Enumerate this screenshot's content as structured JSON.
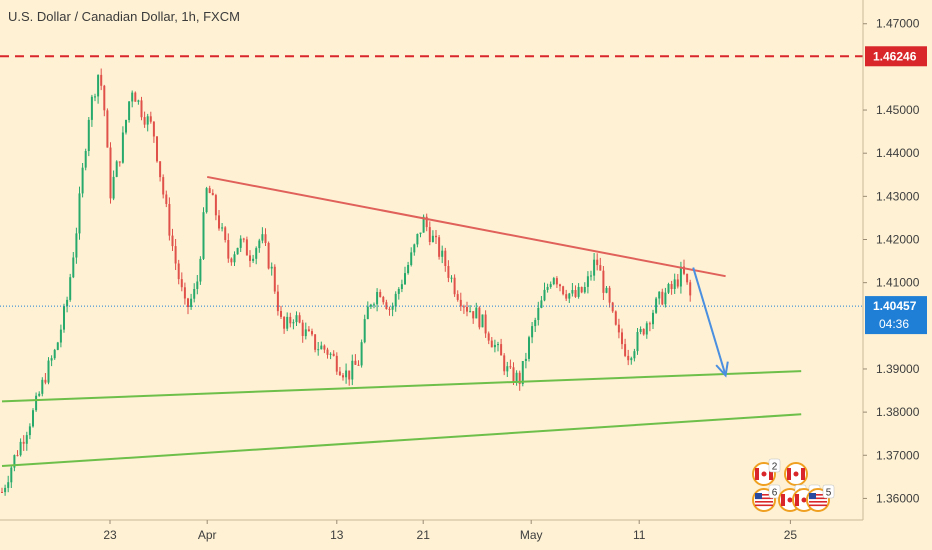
{
  "header": {
    "title": "U.S. Dollar / Canadian Dollar, 1h, FXCM"
  },
  "colors": {
    "background": "#fef1d4",
    "up_candle": "#26a96b",
    "down_candle": "#e0514a",
    "resistance_line": "#e0605a",
    "support_lines": "#6dbf4a",
    "arrow": "#4a8fe0",
    "price_tag": "#1f7fd6",
    "level_tag": "#d8262a"
  },
  "chart_data": {
    "type": "candlestick",
    "title": "U.S. Dollar / Canadian Dollar, 1h, FXCM",
    "x_ticks": [
      "23",
      "Apr",
      "13",
      "21",
      "May",
      "11",
      "25"
    ],
    "y_ticks": [
      "1.47000",
      "1.45000",
      "1.44000",
      "1.43000",
      "1.42000",
      "1.41000",
      "1.39000",
      "1.38000",
      "1.37000",
      "1.36000"
    ],
    "ylim": [
      1.355,
      1.4755
    ],
    "price_series": [
      [
        "Mar 13",
        1.3615
      ],
      [
        "Mar 14",
        1.3685
      ],
      [
        "Mar 15",
        1.3745
      ],
      [
        "Mar 16",
        1.3805
      ],
      [
        "Mar 17",
        1.3885
      ],
      [
        "Mar 18",
        1.3945
      ],
      [
        "Mar 19",
        1.4055
      ],
      [
        "Mar 20",
        1.4245
      ],
      [
        "Mar 21",
        1.4485
      ],
      [
        "Mar 22",
        1.4595
      ],
      [
        "Mar 22b",
        1.4495
      ],
      [
        "Mar 23",
        1.4305
      ],
      [
        "Mar 24",
        1.4405
      ],
      [
        "Mar 25",
        1.4555
      ],
      [
        "Mar 26",
        1.4495
      ],
      [
        "Mar 27",
        1.4455
      ],
      [
        "Mar 28",
        1.4295
      ],
      [
        "Mar 29",
        1.4155
      ],
      [
        "Mar 30",
        1.4035
      ],
      [
        "Mar 31",
        1.4085
      ],
      [
        "Apr 1",
        1.4325
      ],
      [
        "Apr 2",
        1.4245
      ],
      [
        "Apr 3",
        1.4155
      ],
      [
        "Apr 4",
        1.4195
      ],
      [
        "Apr 5",
        1.4165
      ],
      [
        "Apr 6",
        1.4205
      ],
      [
        "Apr 7",
        1.4125
      ],
      [
        "Apr 8",
        1.3985
      ],
      [
        "Apr 9",
        1.4025
      ],
      [
        "Apr 10",
        1.3985
      ],
      [
        "Apr 11",
        1.3955
      ],
      [
        "Apr 12",
        1.3945
      ],
      [
        "Apr 13",
        1.3915
      ],
      [
        "Apr 14",
        1.3885
      ],
      [
        "Apr 15",
        1.3915
      ],
      [
        "Apr 16",
        1.4055
      ],
      [
        "Apr 17",
        1.4085
      ],
      [
        "Apr 18",
        1.4035
      ],
      [
        "Apr 19",
        1.4105
      ],
      [
        "Apr 20",
        1.4165
      ],
      [
        "Apr 21",
        1.4245
      ],
      [
        "Apr 22",
        1.4195
      ],
      [
        "Apr 23",
        1.4145
      ],
      [
        "Apr 24",
        1.4085
      ],
      [
        "Apr 25",
        1.4045
      ],
      [
        "Apr 26",
        1.4025
      ],
      [
        "Apr 27",
        1.3985
      ],
      [
        "Apr 28",
        1.3935
      ],
      [
        "Apr 29",
        1.3885
      ],
      [
        "Apr 30",
        1.3875
      ],
      [
        "May 1",
        1.3985
      ],
      [
        "May 2",
        1.4055
      ],
      [
        "May 3",
        1.4125
      ],
      [
        "May 4",
        1.4085
      ],
      [
        "May 5",
        1.4065
      ],
      [
        "May 6",
        1.4085
      ],
      [
        "May 7",
        1.4155
      ],
      [
        "May 8",
        1.4065
      ],
      [
        "May 9",
        1.3975
      ],
      [
        "May 10",
        1.3935
      ],
      [
        "May 11",
        1.3975
      ],
      [
        "May 12",
        1.4025
      ],
      [
        "May 13",
        1.4065
      ],
      [
        "May 14",
        1.4085
      ],
      [
        "May 15",
        1.4125
      ],
      [
        "May 16",
        1.4045
      ]
    ],
    "level_line": {
      "value": 1.46246,
      "label": "1.46246",
      "style": "dashed"
    },
    "current_price": {
      "label": "1.40457",
      "value": 1.40457
    },
    "countdown": "04:36",
    "trendlines": {
      "resistance": [
        [
          "Apr 1",
          1.4345
        ],
        [
          "May 19",
          1.4115
        ]
      ],
      "support_upper": [
        [
          "Mar 13",
          1.3825
        ],
        [
          "May 26",
          1.3895
        ]
      ],
      "support_lower": [
        [
          "Mar 13",
          1.3675
        ],
        [
          "May 26",
          1.3795
        ]
      ]
    },
    "projection_arrow": [
      [
        "May 16",
        1.4135
      ],
      [
        "May 19",
        1.3885
      ]
    ],
    "event_badges": [
      "2",
      "6",
      "3",
      "6",
      "5"
    ]
  }
}
